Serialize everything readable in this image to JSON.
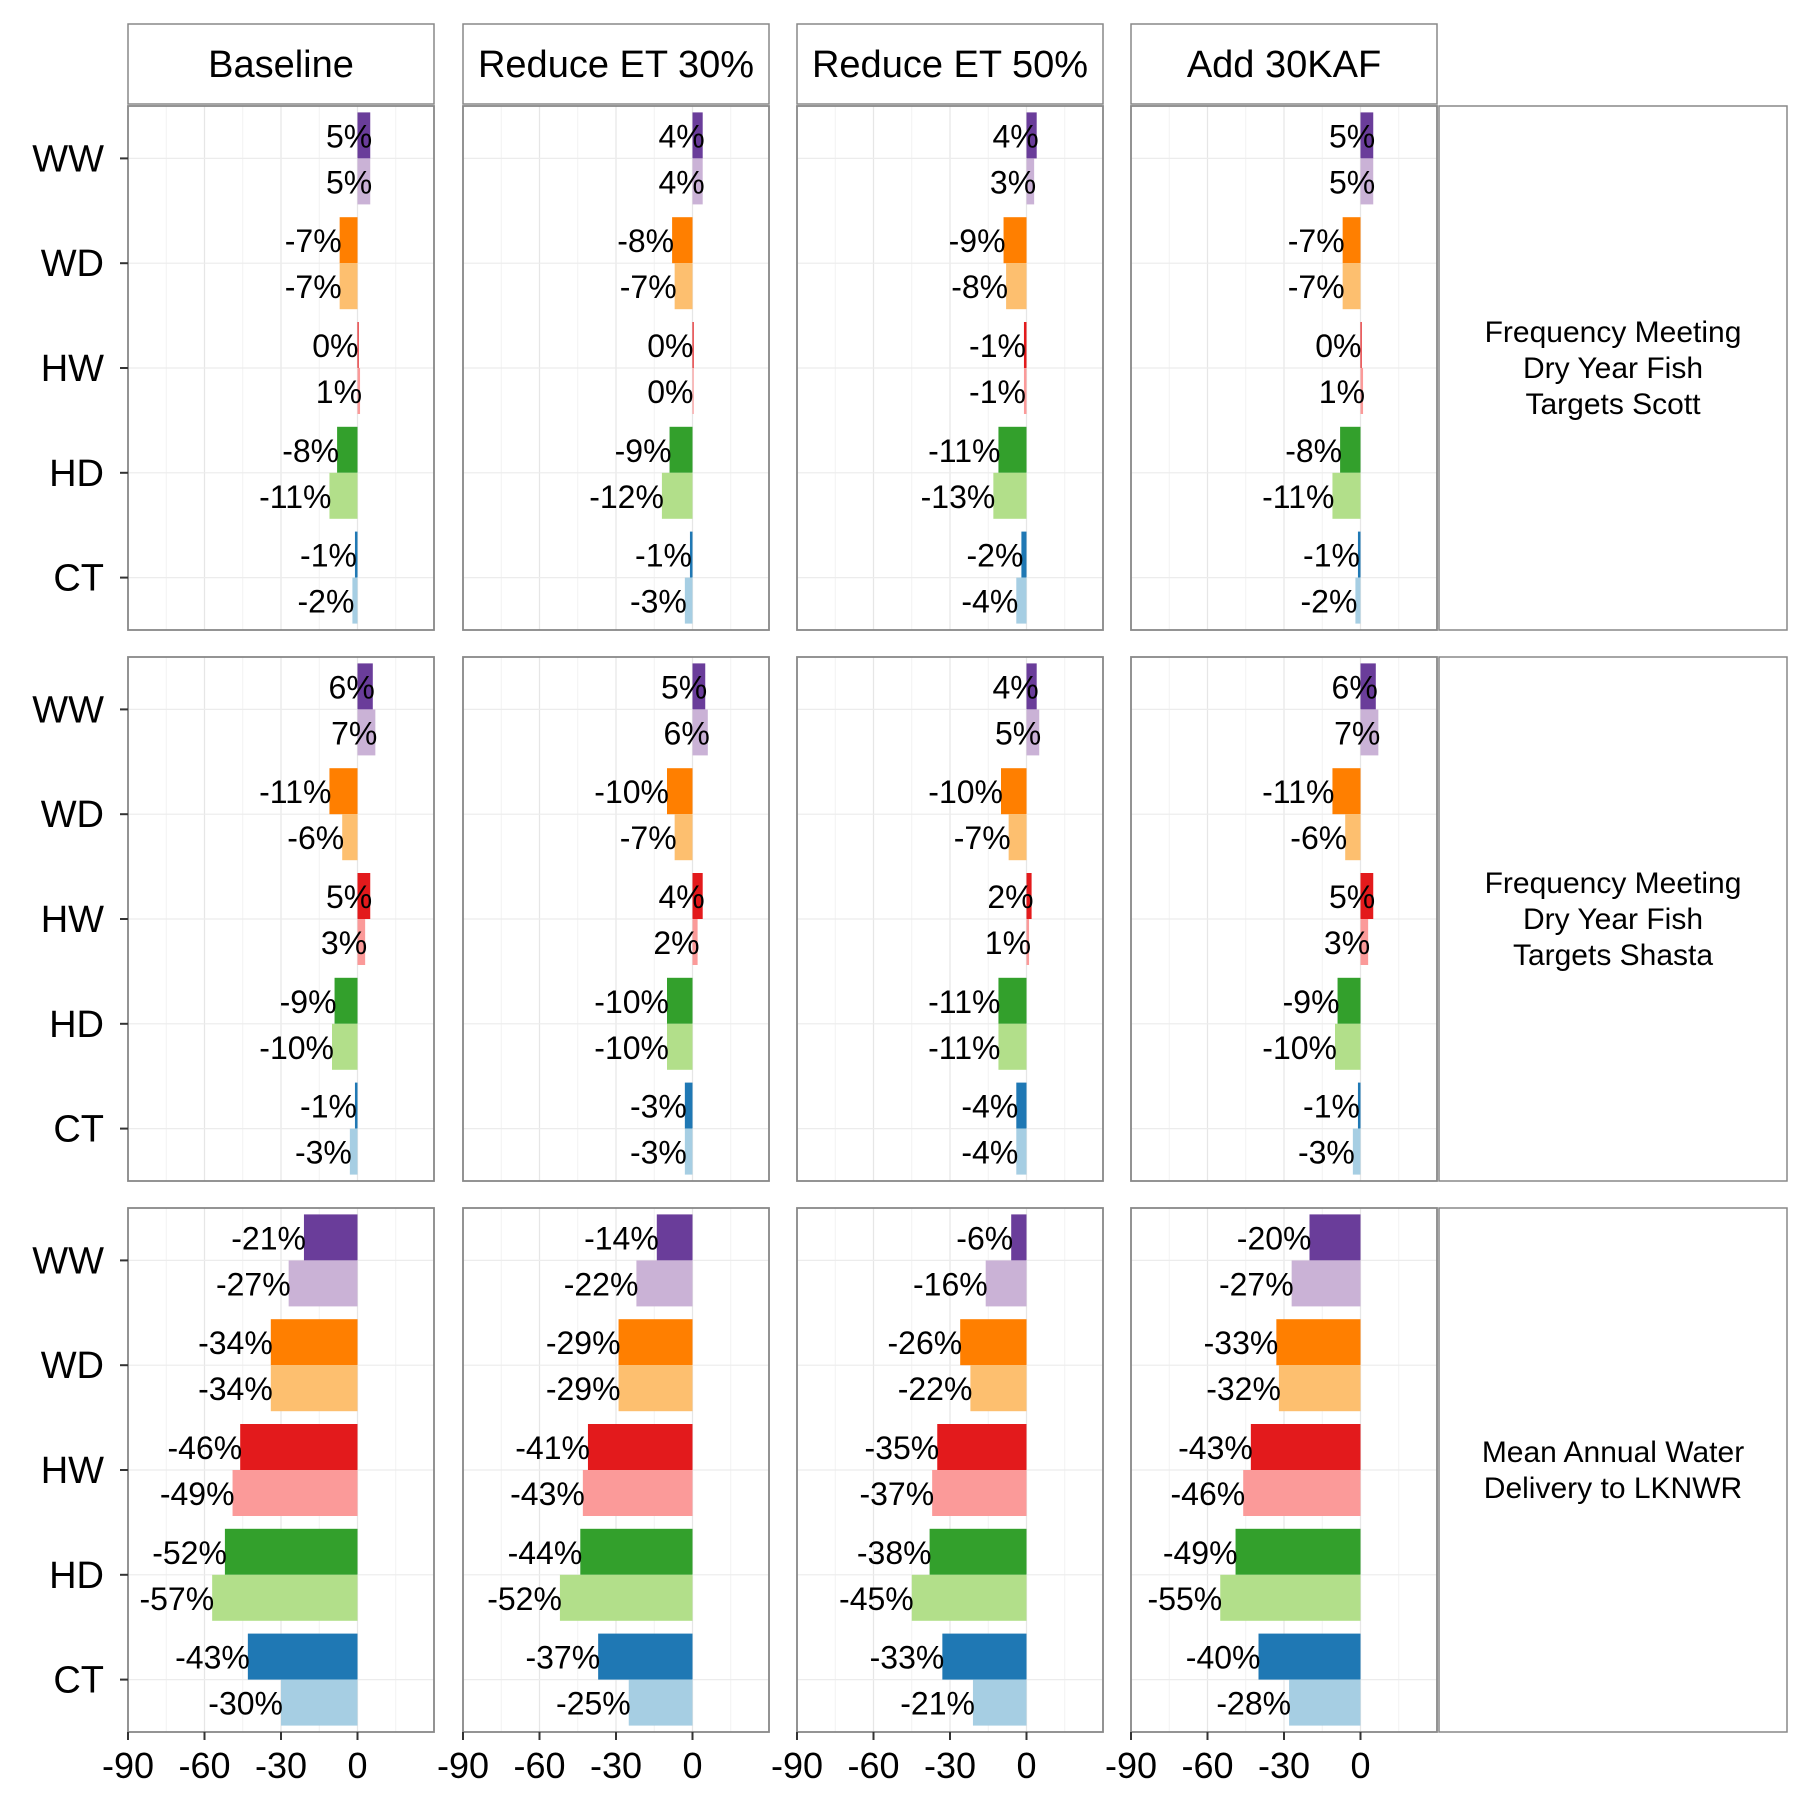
{
  "chart_data": {
    "type": "bar",
    "orientation": "horizontal",
    "columns": [
      "Baseline",
      "Reduce ET 30%",
      "Reduce ET 50%",
      "Add 30KAF"
    ],
    "rows": [
      {
        "label_lines": [
          "Frequency Meeting",
          "Dry Year Fish",
          "Targets Scott"
        ]
      },
      {
        "label_lines": [
          "Frequency Meeting",
          "Dry Year Fish",
          "Targets Shasta"
        ]
      },
      {
        "label_lines": [
          "Mean Annual Water",
          "Delivery to LKNWR"
        ]
      }
    ],
    "categories": [
      "WW",
      "WD",
      "HW",
      "HD",
      "CT"
    ],
    "xlim": [
      -90,
      30
    ],
    "x_ticks": [
      -90,
      -60,
      -30,
      0
    ],
    "x_tick_labels": [
      "-90",
      "-60",
      "-30",
      "0"
    ],
    "colors": {
      "WW": [
        "#6a3d9a",
        "#cab2d6"
      ],
      "WD": [
        "#ff7f00",
        "#fdbf6f"
      ],
      "HW": [
        "#e31a1c",
        "#fb9a99"
      ],
      "HD": [
        "#33a02c",
        "#b2df8a"
      ],
      "CT": [
        "#1f78b4",
        "#a6cee3"
      ]
    },
    "panels": [
      [
        {
          "WW": [
            5,
            5
          ],
          "WD": [
            -7,
            -7
          ],
          "HW": [
            0,
            1
          ],
          "HD": [
            -8,
            -11
          ],
          "CT": [
            -1,
            -2
          ]
        },
        {
          "WW": [
            4,
            4
          ],
          "WD": [
            -8,
            -7
          ],
          "HW": [
            0,
            0
          ],
          "HD": [
            -9,
            -12
          ],
          "CT": [
            -1,
            -3
          ]
        },
        {
          "WW": [
            4,
            3
          ],
          "WD": [
            -9,
            -8
          ],
          "HW": [
            -1,
            -1
          ],
          "HD": [
            -11,
            -13
          ],
          "CT": [
            -2,
            -4
          ]
        },
        {
          "WW": [
            5,
            5
          ],
          "WD": [
            -7,
            -7
          ],
          "HW": [
            0,
            1
          ],
          "HD": [
            -8,
            -11
          ],
          "CT": [
            -1,
            -2
          ]
        }
      ],
      [
        {
          "WW": [
            6,
            7
          ],
          "WD": [
            -11,
            -6
          ],
          "HW": [
            5,
            3
          ],
          "HD": [
            -9,
            -10
          ],
          "CT": [
            -1,
            -3
          ]
        },
        {
          "WW": [
            5,
            6
          ],
          "WD": [
            -10,
            -7
          ],
          "HW": [
            4,
            2
          ],
          "HD": [
            -10,
            -10
          ],
          "CT": [
            -3,
            -3
          ]
        },
        {
          "WW": [
            4,
            5
          ],
          "WD": [
            -10,
            -7
          ],
          "HW": [
            2,
            1
          ],
          "HD": [
            -11,
            -11
          ],
          "CT": [
            -4,
            -4
          ]
        },
        {
          "WW": [
            6,
            7
          ],
          "WD": [
            -11,
            -6
          ],
          "HW": [
            5,
            3
          ],
          "HD": [
            -9,
            -10
          ],
          "CT": [
            -1,
            -3
          ]
        }
      ],
      [
        {
          "WW": [
            -21,
            -27
          ],
          "WD": [
            -34,
            -34
          ],
          "HW": [
            -46,
            -49
          ],
          "HD": [
            -52,
            -57
          ],
          "CT": [
            -43,
            -30
          ]
        },
        {
          "WW": [
            -14,
            -22
          ],
          "WD": [
            -29,
            -29
          ],
          "HW": [
            -41,
            -43
          ],
          "HD": [
            -44,
            -52
          ],
          "CT": [
            -37,
            -25
          ]
        },
        {
          "WW": [
            -6,
            -16
          ],
          "WD": [
            -26,
            -22
          ],
          "HW": [
            -35,
            -37
          ],
          "HD": [
            -38,
            -45
          ],
          "CT": [
            -33,
            -21
          ]
        },
        {
          "WW": [
            -20,
            -27
          ],
          "WD": [
            -33,
            -32
          ],
          "HW": [
            -43,
            -46
          ],
          "HD": [
            -49,
            -55
          ],
          "CT": [
            -40,
            -28
          ]
        }
      ]
    ]
  }
}
